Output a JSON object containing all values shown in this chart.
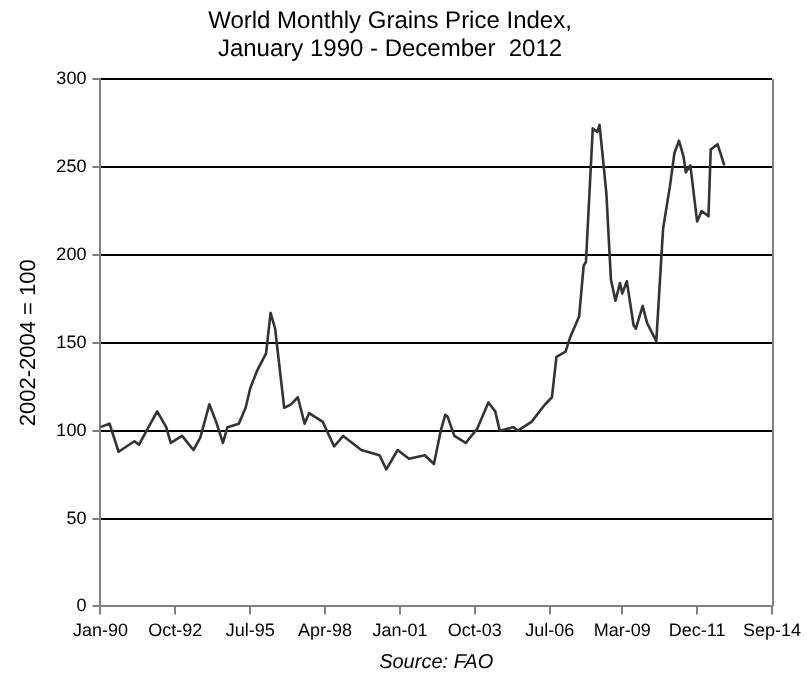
{
  "chart_data": {
    "type": "line",
    "title": "World Monthly Grains Price Index,\nJanuary 1990 - December  2012",
    "ylabel": "2002-2004 = 100",
    "annotations": [
      "Source: FAO"
    ],
    "x": [
      "1990-01",
      "1990-05",
      "1990-09",
      "1991-04",
      "1991-06",
      "1992-02",
      "1992-06",
      "1992-08",
      "1993-01",
      "1993-06",
      "1993-09",
      "1994-01",
      "1994-04",
      "1994-07",
      "1994-09",
      "1995-02",
      "1995-05",
      "1995-07",
      "1995-10",
      "1996-02",
      "1996-04",
      "1996-06",
      "1996-10",
      "1997-01",
      "1997-04",
      "1997-07",
      "1997-09",
      "1998-03",
      "1998-08",
      "1998-12",
      "1999-08",
      "2000-04",
      "2000-07",
      "2000-12",
      "2001-05",
      "2001-12",
      "2002-04",
      "2002-07",
      "2002-09",
      "2002-10",
      "2003-01",
      "2003-06",
      "2003-11",
      "2004-04",
      "2004-07",
      "2004-09",
      "2005-03",
      "2005-05",
      "2005-11",
      "2006-05",
      "2006-08",
      "2006-10",
      "2007-02",
      "2007-04",
      "2007-08",
      "2007-10",
      "2007-11",
      "2008-02",
      "2008-04",
      "2008-05",
      "2008-08",
      "2008-10",
      "2008-12",
      "2009-02",
      "2009-03",
      "2009-05",
      "2009-08",
      "2009-09",
      "2009-12",
      "2010-02",
      "2010-06",
      "2010-09",
      "2010-12",
      "2011-02",
      "2011-04",
      "2011-06",
      "2011-07",
      "2011-09",
      "2011-12",
      "2012-02",
      "2012-05",
      "2012-06",
      "2012-09",
      "2012-12"
    ],
    "series": [
      {
        "color": "#333333",
        "values": [
          102,
          104,
          88,
          94,
          92,
          111,
          102,
          93,
          97,
          89,
          96,
          115,
          105,
          93,
          102,
          104,
          113,
          124,
          134,
          144,
          167,
          158,
          113,
          115,
          119,
          104,
          110,
          105,
          91,
          97,
          89,
          86,
          78,
          89,
          84,
          86,
          81,
          100,
          109,
          108,
          97,
          93,
          101,
          116,
          111,
          100,
          102,
          100,
          105,
          115,
          119,
          142,
          145,
          153,
          165,
          194,
          196,
          272,
          270,
          274,
          235,
          186,
          174,
          184,
          178,
          185,
          160,
          158,
          171,
          161,
          151,
          215,
          239,
          258,
          265,
          256,
          247,
          251,
          219,
          225,
          222,
          260,
          263,
          251
        ]
      }
    ],
    "xlim": [
      "1990-01",
      "2014-09"
    ],
    "xticks": [
      {
        "value": "1990-01",
        "label": "Jan-90"
      },
      {
        "value": "1992-10",
        "label": "Oct-92"
      },
      {
        "value": "1995-07",
        "label": "Jul-95"
      },
      {
        "value": "1998-04",
        "label": "Apr-98"
      },
      {
        "value": "2001-01",
        "label": "Jan-01"
      },
      {
        "value": "2003-10",
        "label": "Oct-03"
      },
      {
        "value": "2006-07",
        "label": "Jul-06"
      },
      {
        "value": "2009-03",
        "label": "Mar-09"
      },
      {
        "value": "2011-12",
        "label": "Dec-11"
      },
      {
        "value": "2014-09",
        "label": "Sep-14"
      }
    ],
    "ylim": [
      0,
      300
    ],
    "yticks": [
      0,
      50,
      100,
      150,
      200,
      250,
      300
    ],
    "grid": "y",
    "legend": false,
    "marker": "none",
    "line_style": "solid"
  }
}
